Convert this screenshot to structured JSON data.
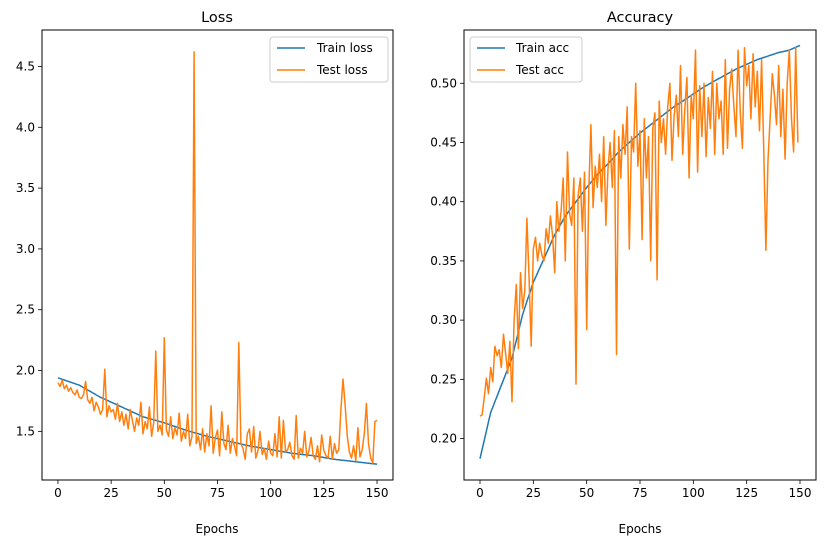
{
  "chart_data": [
    {
      "type": "line",
      "title": "Loss",
      "xlabel": "Epochs",
      "ylabel": "",
      "xlim": [
        -7.5,
        157.5
      ],
      "ylim": [
        1.1,
        4.8
      ],
      "xticks": [
        0,
        25,
        50,
        75,
        100,
        125,
        150
      ],
      "yticks": [
        1.5,
        2.0,
        2.5,
        3.0,
        3.5,
        4.0,
        4.5
      ],
      "ytick_labels": [
        "1.5",
        "2.0",
        "2.5",
        "3.0",
        "3.5",
        "4.0",
        "4.5"
      ],
      "legend_position": "top-right",
      "grid": false,
      "x_step": 1,
      "series": [
        {
          "name": "Train loss",
          "color": "#1f77b4",
          "keyframes": [
            [
              0,
              1.94
            ],
            [
              10,
              1.88
            ],
            [
              20,
              1.78
            ],
            [
              30,
              1.7
            ],
            [
              40,
              1.62
            ],
            [
              50,
              1.57
            ],
            [
              60,
              1.51
            ],
            [
              70,
              1.46
            ],
            [
              80,
              1.42
            ],
            [
              90,
              1.38
            ],
            [
              100,
              1.35
            ],
            [
              110,
              1.32
            ],
            [
              120,
              1.3
            ],
            [
              130,
              1.27
            ],
            [
              140,
              1.25
            ],
            [
              150,
              1.23
            ]
          ]
        },
        {
          "name": "Test loss",
          "color": "#ff7f0e",
          "values": [
            1.9,
            1.87,
            1.92,
            1.85,
            1.88,
            1.83,
            1.86,
            1.82,
            1.8,
            1.84,
            1.78,
            1.77,
            1.8,
            1.91,
            1.76,
            1.73,
            1.78,
            1.67,
            1.74,
            1.7,
            1.64,
            1.68,
            2.01,
            1.62,
            1.71,
            1.66,
            1.68,
            1.6,
            1.73,
            1.58,
            1.66,
            1.55,
            1.64,
            1.52,
            1.68,
            1.59,
            1.5,
            1.61,
            1.55,
            1.74,
            1.48,
            1.58,
            1.52,
            1.7,
            1.46,
            1.57,
            2.16,
            1.5,
            1.55,
            1.47,
            2.27,
            1.51,
            1.46,
            1.62,
            1.44,
            1.53,
            1.47,
            1.65,
            1.42,
            1.5,
            1.44,
            1.64,
            1.38,
            1.46,
            4.62,
            1.4,
            1.46,
            1.35,
            1.52,
            1.33,
            1.48,
            1.38,
            1.71,
            1.32,
            1.45,
            1.51,
            1.3,
            1.66,
            1.4,
            1.35,
            1.55,
            1.32,
            1.44,
            1.38,
            1.3,
            2.23,
            1.4,
            1.36,
            1.27,
            1.48,
            1.52,
            1.33,
            1.54,
            1.28,
            1.34,
            1.5,
            1.31,
            1.36,
            1.27,
            1.42,
            1.32,
            1.3,
            1.48,
            1.29,
            1.62,
            1.28,
            1.59,
            1.33,
            1.35,
            1.41,
            1.3,
            1.27,
            1.63,
            1.28,
            1.36,
            1.32,
            1.5,
            1.29,
            1.34,
            1.45,
            1.3,
            1.27,
            1.38,
            1.25,
            1.47,
            1.34,
            1.3,
            1.28,
            1.46,
            1.27,
            1.4,
            1.32,
            1.35,
            1.68,
            1.93,
            1.72,
            1.46,
            1.33,
            1.28,
            1.38,
            1.26,
            1.53,
            1.29,
            1.35,
            1.48,
            1.73,
            1.4,
            1.28,
            1.24,
            1.58,
            1.59
          ]
        }
      ]
    },
    {
      "type": "line",
      "title": "Accuracy",
      "xlabel": "Epochs",
      "ylabel": "",
      "xlim": [
        -7.5,
        157.5
      ],
      "ylim": [
        0.165,
        0.545
      ],
      "xticks": [
        0,
        25,
        50,
        75,
        100,
        125,
        150
      ],
      "yticks": [
        0.2,
        0.25,
        0.3,
        0.35,
        0.4,
        0.45,
        0.5
      ],
      "ytick_labels": [
        "0.20",
        "0.25",
        "0.30",
        "0.35",
        "0.40",
        "0.45",
        "0.50"
      ],
      "legend_position": "top-left",
      "grid": false,
      "x_step": 1,
      "series": [
        {
          "name": "Train acc",
          "color": "#1f77b4",
          "keyframes": [
            [
              0,
              0.183
            ],
            [
              5,
              0.222
            ],
            [
              10,
              0.245
            ],
            [
              15,
              0.268
            ],
            [
              20,
              0.305
            ],
            [
              25,
              0.332
            ],
            [
              30,
              0.352
            ],
            [
              35,
              0.372
            ],
            [
              40,
              0.388
            ],
            [
              45,
              0.4
            ],
            [
              50,
              0.412
            ],
            [
              55,
              0.423
            ],
            [
              60,
              0.432
            ],
            [
              65,
              0.442
            ],
            [
              70,
              0.45
            ],
            [
              75,
              0.458
            ],
            [
              80,
              0.465
            ],
            [
              85,
              0.472
            ],
            [
              90,
              0.479
            ],
            [
              95,
              0.485
            ],
            [
              100,
              0.491
            ],
            [
              105,
              0.497
            ],
            [
              110,
              0.502
            ],
            [
              115,
              0.507
            ],
            [
              120,
              0.512
            ],
            [
              125,
              0.516
            ],
            [
              130,
              0.52
            ],
            [
              135,
              0.523
            ],
            [
              140,
              0.526
            ],
            [
              145,
              0.528
            ],
            [
              150,
              0.532
            ]
          ]
        },
        {
          "name": "Test acc",
          "color": "#ff7f0e",
          "values": [
            0.219,
            0.22,
            0.235,
            0.251,
            0.238,
            0.26,
            0.248,
            0.278,
            0.27,
            0.275,
            0.26,
            0.288,
            0.272,
            0.255,
            0.282,
            0.231,
            0.3,
            0.33,
            0.276,
            0.34,
            0.31,
            0.325,
            0.386,
            0.335,
            0.278,
            0.36,
            0.37,
            0.35,
            0.365,
            0.355,
            0.35,
            0.377,
            0.365,
            0.388,
            0.372,
            0.34,
            0.4,
            0.375,
            0.392,
            0.42,
            0.35,
            0.442,
            0.39,
            0.38,
            0.42,
            0.246,
            0.405,
            0.42,
            0.375,
            0.425,
            0.292,
            0.41,
            0.465,
            0.395,
            0.43,
            0.412,
            0.44,
            0.4,
            0.455,
            0.38,
            0.428,
            0.45,
            0.412,
            0.46,
            0.271,
            0.455,
            0.42,
            0.465,
            0.44,
            0.48,
            0.36,
            0.455,
            0.442,
            0.5,
            0.43,
            0.46,
            0.368,
            0.47,
            0.42,
            0.455,
            0.35,
            0.462,
            0.475,
            0.334,
            0.485,
            0.45,
            0.47,
            0.44,
            0.48,
            0.5,
            0.435,
            0.472,
            0.49,
            0.455,
            0.515,
            0.44,
            0.478,
            0.505,
            0.42,
            0.49,
            0.47,
            0.528,
            0.425,
            0.498,
            0.455,
            0.5,
            0.438,
            0.488,
            0.462,
            0.51,
            0.44,
            0.5,
            0.47,
            0.485,
            0.44,
            0.52,
            0.445,
            0.495,
            0.512,
            0.48,
            0.455,
            0.528,
            0.475,
            0.445,
            0.53,
            0.498,
            0.515,
            0.47,
            0.525,
            0.48,
            0.51,
            0.46,
            0.52,
            0.445,
            0.359,
            0.435,
            0.47,
            0.508,
            0.49,
            0.465,
            0.515,
            0.455,
            0.495,
            0.436,
            0.5,
            0.528,
            0.47,
            0.442,
            0.53,
            0.45
          ]
        }
      ]
    }
  ]
}
